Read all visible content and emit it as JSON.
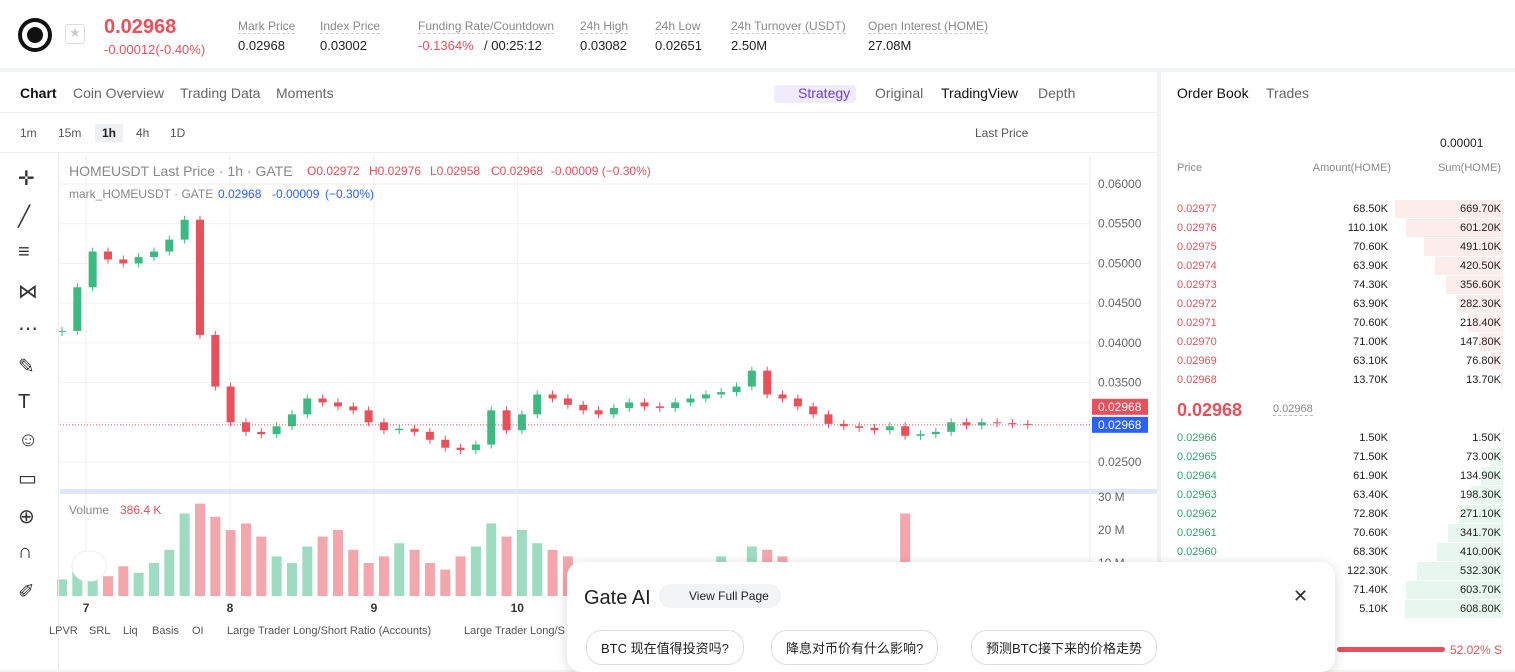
{
  "header": {
    "price": "0.02968",
    "change": "-0.00012(-0.40%)",
    "stats": [
      {
        "label": "Mark Price",
        "value": "0.02968"
      },
      {
        "label": "Index Price",
        "value": "0.03002"
      },
      {
        "label": "Funding Rate/Countdown",
        "value": "-0.1364%",
        "extra": "/ 00:25:12"
      },
      {
        "label": "24h High",
        "value": "0.03082"
      },
      {
        "label": "24h Low",
        "value": "0.02651"
      },
      {
        "label": "24h Turnover (USDT)",
        "value": "2.50M"
      },
      {
        "label": "Open Interest (HOME)",
        "value": "27.08M"
      }
    ]
  },
  "tabs": [
    "Chart",
    "Coin Overview",
    "Trading Data",
    "Moments"
  ],
  "views": [
    "Strategy",
    "Original",
    "TradingView",
    "Depth"
  ],
  "intervals": [
    "1m",
    "15m",
    "1h",
    "4h",
    "1D"
  ],
  "price_type": "Last Price",
  "legend": {
    "main": "HOMEUSDT Last Price · 1h · GATE",
    "ohlc": [
      "O0.02972",
      "H0.02976",
      "L0.02958",
      "C0.02968",
      "-0.00009 (−0.30%)"
    ],
    "mark": "mark_HOMEUSDT · GATE",
    "mark_values": [
      "0.02968",
      "-0.00009",
      "(−0.30%)"
    ],
    "volume": "Volume",
    "volume_value": "386.4 K"
  },
  "chart_data": {
    "type": "candlestick",
    "closes": [
      0.0415,
      0.047,
      0.0515,
      0.0505,
      0.05,
      0.0508,
      0.0515,
      0.053,
      0.0555,
      0.041,
      0.0345,
      0.03,
      0.0288,
      0.0285,
      0.0295,
      0.031,
      0.033,
      0.0325,
      0.032,
      0.0315,
      0.03,
      0.029,
      0.0292,
      0.0288,
      0.0278,
      0.0268,
      0.0265,
      0.0272,
      0.0315,
      0.029,
      0.031,
      0.0335,
      0.033,
      0.0322,
      0.0315,
      0.031,
      0.0318,
      0.0325,
      0.032,
      0.0318,
      0.0325,
      0.033,
      0.0335,
      0.0338,
      0.0345,
      0.0365,
      0.0335,
      0.033,
      0.032,
      0.031,
      0.0298,
      0.0295,
      0.0293,
      0.029,
      0.0295,
      0.0283,
      0.0285,
      0.0288,
      0.03,
      0.0296,
      0.03,
      0.0299,
      0.0298,
      0.02968
    ],
    "volumes": [
      5,
      8,
      12,
      6,
      9,
      7,
      10,
      14,
      25,
      28,
      24,
      20,
      22,
      18,
      12,
      10,
      15,
      18,
      20,
      14,
      10,
      12,
      16,
      14,
      10,
      8,
      12,
      15,
      22,
      18,
      20,
      16,
      14,
      12,
      10,
      8,
      9,
      10,
      8,
      7,
      6,
      8,
      9,
      12,
      10,
      15,
      14,
      12,
      10,
      8,
      9,
      7,
      8,
      6,
      10,
      25,
      8,
      6,
      5,
      6,
      5,
      4,
      4,
      3
    ],
    "ylim": [
      0.025,
      0.06
    ],
    "yticks": [
      {
        "value": 0.06,
        "label": "0.06000"
      },
      {
        "value": 0.055,
        "label": "0.05500"
      },
      {
        "value": 0.05,
        "label": "0.05000"
      },
      {
        "value": 0.045,
        "label": "0.04500"
      },
      {
        "value": 0.04,
        "label": "0.04000"
      },
      {
        "value": 0.035,
        "label": "0.03500"
      },
      {
        "value": 0.03,
        "label": "0.03000"
      },
      {
        "value": 0.025,
        "label": "0.02500"
      }
    ],
    "vticks": [
      {
        "value": 30,
        "label": "30 M"
      },
      {
        "value": 20,
        "label": "20 M"
      },
      {
        "value": 10,
        "label": "10 M"
      }
    ],
    "vlim": [
      0,
      30
    ],
    "xticks": [
      {
        "value": 1.57,
        "label": "7"
      },
      {
        "value": 10.96,
        "label": "8"
      },
      {
        "value": 20.35,
        "label": "9"
      },
      {
        "value": 29.7,
        "label": "10"
      }
    ],
    "last_labels": [
      "0.02968",
      "0.02968"
    ],
    "up_color": "#3dba83",
    "down_color": "#e8505b"
  },
  "indicators": [
    "LPVR",
    "SRL",
    "Liq",
    "Basis",
    "OI",
    "Large Trader Long/Short Ratio (Accounts)",
    "Large Trader Long/S"
  ],
  "orderbook": {
    "tabs": [
      "Order Book",
      "Trades"
    ],
    "precision": "0.00001",
    "columns": [
      "Price",
      "Amount(HOME)",
      "Sum(HOME)"
    ],
    "asks": [
      [
        "0.02977",
        "68.50K",
        "669.70K"
      ],
      [
        "0.02976",
        "110.10K",
        "601.20K"
      ],
      [
        "0.02975",
        "70.60K",
        "491.10K"
      ],
      [
        "0.02974",
        "63.90K",
        "420.50K"
      ],
      [
        "0.02973",
        "74.30K",
        "356.60K"
      ],
      [
        "0.02972",
        "63.90K",
        "282.30K"
      ],
      [
        "0.02971",
        "70.60K",
        "218.40K"
      ],
      [
        "0.02970",
        "71.00K",
        "147.80K"
      ],
      [
        "0.02969",
        "63.10K",
        "76.80K"
      ],
      [
        "0.02968",
        "13.70K",
        "13.70K"
      ]
    ],
    "mid": "0.02968",
    "mid_mark": "0.02968",
    "bids": [
      [
        "0.02966",
        "1.50K",
        "1.50K"
      ],
      [
        "0.02965",
        "71.50K",
        "73.00K"
      ],
      [
        "0.02964",
        "61.90K",
        "134.90K"
      ],
      [
        "0.02963",
        "63.40K",
        "198.30K"
      ],
      [
        "0.02962",
        "72.80K",
        "271.10K"
      ],
      [
        "0.02961",
        "70.60K",
        "341.70K"
      ],
      [
        "0.02960",
        "68.30K",
        "410.00K"
      ],
      [
        null,
        "122.30K",
        "532.30K"
      ],
      [
        null,
        "71.40K",
        "603.70K"
      ],
      [
        null,
        "5.10K",
        "608.80K"
      ]
    ],
    "ratio": "52.02% S"
  },
  "gate_ai": {
    "title": "Gate AI",
    "button": "View Full Page",
    "chips": [
      "BTC 现在值得投资吗?",
      "降息对币价有什么影响?",
      "预测BTC接下来的价格走势"
    ]
  }
}
